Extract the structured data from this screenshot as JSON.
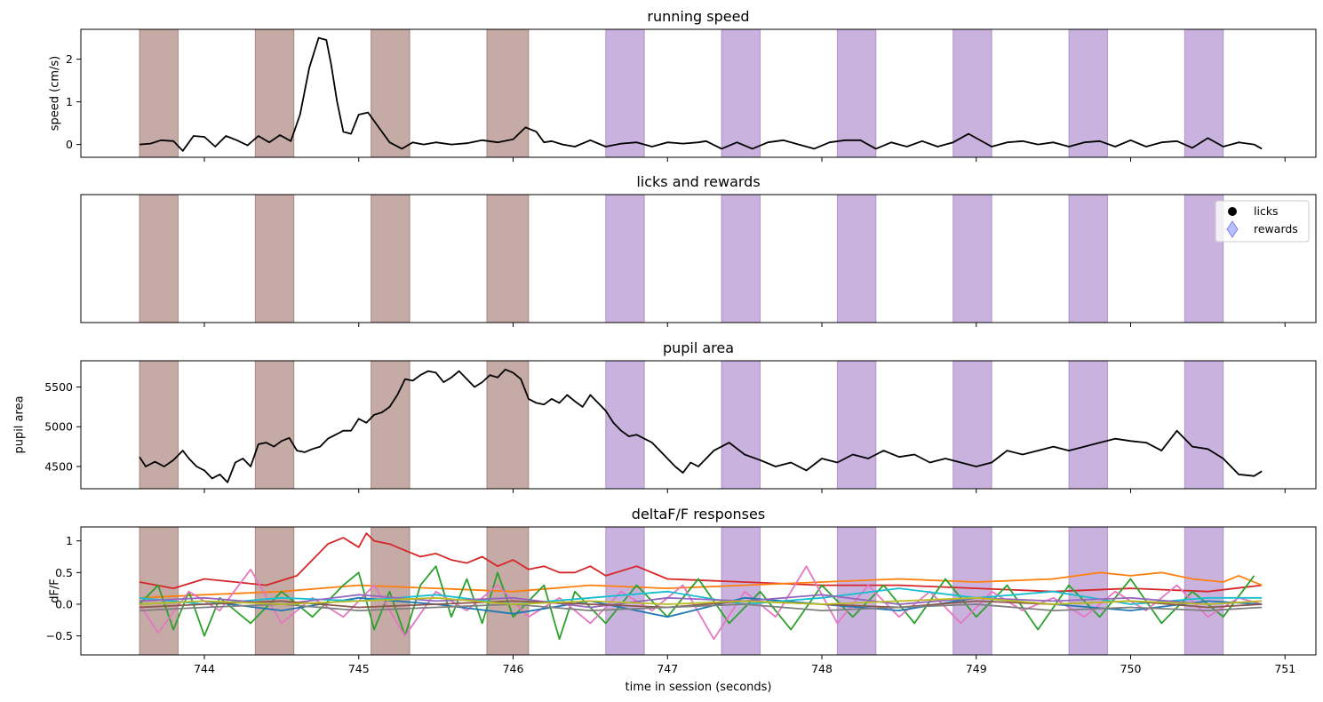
{
  "chart_data": [
    {
      "type": "line",
      "title": "running speed",
      "xlabel": "",
      "ylabel": "speed (cm/s)",
      "xlim": [
        743.2,
        751.2
      ],
      "ylim": [
        -0.3,
        2.7
      ],
      "yticks": [
        0,
        1,
        2
      ],
      "show_xticklabels": false,
      "series": [
        {
          "color": "#000000",
          "x": [
            743.58,
            743.65,
            743.72,
            743.8,
            743.86,
            743.93,
            744.0,
            744.07,
            744.14,
            744.21,
            744.28,
            744.35,
            744.42,
            744.49,
            744.56,
            744.62,
            744.68,
            744.74,
            744.79,
            744.82,
            744.86,
            744.9,
            744.95,
            745.0,
            745.06,
            745.13,
            745.2,
            745.28,
            745.35,
            745.42,
            745.5,
            745.6,
            745.7,
            745.8,
            745.9,
            746.0,
            746.08,
            746.15,
            746.2,
            746.25,
            746.32,
            746.4,
            746.5,
            746.6,
            746.7,
            746.8,
            746.9,
            747.0,
            747.1,
            747.2,
            747.25,
            747.35,
            747.45,
            747.55,
            747.65,
            747.75,
            747.85,
            747.95,
            748.05,
            748.15,
            748.25,
            748.35,
            748.45,
            748.55,
            748.65,
            748.75,
            748.85,
            748.95,
            749.0,
            749.1,
            749.2,
            749.3,
            749.4,
            749.5,
            749.6,
            749.7,
            749.8,
            749.9,
            750.0,
            750.1,
            750.2,
            750.3,
            750.4,
            750.5,
            750.6,
            750.7,
            750.8,
            750.85
          ],
          "y": [
            0.0,
            0.02,
            0.1,
            0.08,
            -0.15,
            0.2,
            0.18,
            -0.05,
            0.2,
            0.1,
            -0.02,
            0.2,
            0.05,
            0.22,
            0.08,
            0.7,
            1.8,
            2.5,
            2.45,
            1.9,
            1.0,
            0.3,
            0.25,
            0.7,
            0.75,
            0.4,
            0.05,
            -0.1,
            0.05,
            0.0,
            0.05,
            0.0,
            0.03,
            0.1,
            0.05,
            0.12,
            0.4,
            0.3,
            0.05,
            0.08,
            0.0,
            -0.05,
            0.1,
            -0.05,
            0.02,
            0.05,
            -0.05,
            0.05,
            0.02,
            0.05,
            0.08,
            -0.1,
            0.05,
            -0.1,
            0.05,
            0.1,
            0.0,
            -0.1,
            0.05,
            0.1,
            0.1,
            -0.1,
            0.05,
            -0.05,
            0.08,
            -0.05,
            0.05,
            0.25,
            0.15,
            -0.05,
            0.05,
            0.08,
            0.0,
            0.05,
            -0.05,
            0.05,
            0.08,
            -0.05,
            0.1,
            -0.05,
            0.05,
            0.08,
            -0.08,
            0.15,
            -0.05,
            0.05,
            0.0,
            -0.1
          ]
        }
      ]
    },
    {
      "type": "scatter",
      "title": "licks and rewards",
      "xlabel": "",
      "ylabel": "",
      "xlim": [
        743.2,
        751.2
      ],
      "ylim": [
        0,
        1
      ],
      "show_yticks": false,
      "show_xticklabels": false,
      "legend": {
        "placement": "upper right",
        "entries": [
          {
            "label": "licks",
            "marker": "circle",
            "color": "#000000"
          },
          {
            "label": "rewards",
            "marker": "diamond",
            "color": "#8c96ff"
          }
        ]
      },
      "series": []
    },
    {
      "type": "line",
      "title": "pupil area",
      "xlabel": "",
      "ylabel": "pupil area",
      "xlim": [
        743.2,
        751.2
      ],
      "ylim": [
        4220,
        5830
      ],
      "yticks": [
        4500,
        5000,
        5500
      ],
      "show_xticklabels": false,
      "series": [
        {
          "color": "#000000",
          "x": [
            743.58,
            743.62,
            743.68,
            743.74,
            743.8,
            743.86,
            743.9,
            743.95,
            744.0,
            744.05,
            744.1,
            744.15,
            744.2,
            744.25,
            744.3,
            744.35,
            744.4,
            744.45,
            744.5,
            744.55,
            744.6,
            744.65,
            744.7,
            744.75,
            744.8,
            744.85,
            744.9,
            744.95,
            745.0,
            745.05,
            745.1,
            745.15,
            745.2,
            745.25,
            745.3,
            745.35,
            745.4,
            745.45,
            745.5,
            745.55,
            745.6,
            745.65,
            745.7,
            745.75,
            745.8,
            745.85,
            745.9,
            745.95,
            746.0,
            746.05,
            746.1,
            746.15,
            746.2,
            746.25,
            746.3,
            746.35,
            746.4,
            746.45,
            746.5,
            746.55,
            746.6,
            746.65,
            746.7,
            746.75,
            746.8,
            746.85,
            746.9,
            746.95,
            747.0,
            747.05,
            747.1,
            747.15,
            747.2,
            747.3,
            747.4,
            747.5,
            747.6,
            747.7,
            747.8,
            747.9,
            748.0,
            748.1,
            748.2,
            748.3,
            748.4,
            748.5,
            748.6,
            748.7,
            748.8,
            748.9,
            749.0,
            749.1,
            749.2,
            749.3,
            749.4,
            749.5,
            749.6,
            749.7,
            749.8,
            749.9,
            750.0,
            750.1,
            750.2,
            750.3,
            750.4,
            750.5,
            750.6,
            750.7,
            750.8,
            750.85
          ],
          "y": [
            4620,
            4500,
            4560,
            4500,
            4580,
            4700,
            4600,
            4500,
            4450,
            4350,
            4400,
            4300,
            4550,
            4600,
            4500,
            4780,
            4800,
            4750,
            4820,
            4860,
            4700,
            4680,
            4720,
            4750,
            4850,
            4900,
            4950,
            4950,
            5100,
            5050,
            5150,
            5180,
            5250,
            5400,
            5600,
            5580,
            5650,
            5700,
            5680,
            5560,
            5620,
            5700,
            5600,
            5500,
            5560,
            5650,
            5620,
            5720,
            5680,
            5600,
            5350,
            5300,
            5280,
            5350,
            5300,
            5400,
            5320,
            5250,
            5400,
            5300,
            5200,
            5050,
            4950,
            4880,
            4900,
            4850,
            4800,
            4700,
            4600,
            4500,
            4420,
            4550,
            4500,
            4700,
            4800,
            4650,
            4580,
            4500,
            4550,
            4450,
            4600,
            4550,
            4650,
            4600,
            4700,
            4620,
            4650,
            4550,
            4600,
            4550,
            4500,
            4550,
            4700,
            4650,
            4700,
            4750,
            4700,
            4750,
            4800,
            4850,
            4820,
            4800,
            4700,
            4950,
            4750,
            4720,
            4600,
            4400,
            4380,
            4440
          ]
        }
      ]
    },
    {
      "type": "line",
      "title": "deltaF/F responses",
      "xlabel": "time in session (seconds)",
      "ylabel": "dF/F",
      "xlim": [
        743.2,
        751.2
      ],
      "ylim": [
        -0.8,
        1.22
      ],
      "yticks": [
        -0.5,
        0.0,
        0.5,
        1.0
      ],
      "xticks": [
        744,
        745,
        746,
        747,
        748,
        749,
        750,
        751
      ],
      "series": [
        {
          "color": "#d62728",
          "x": [
            743.58,
            743.8,
            744.0,
            744.2,
            744.4,
            744.6,
            744.7,
            744.8,
            744.9,
            745.0,
            745.05,
            745.1,
            745.2,
            745.3,
            745.4,
            745.5,
            745.6,
            745.7,
            745.8,
            745.9,
            746.0,
            746.1,
            746.2,
            746.3,
            746.4,
            746.5,
            746.6,
            746.8,
            747.0,
            747.5,
            748.0,
            748.5,
            749.0,
            749.5,
            750.0,
            750.5,
            750.85
          ],
          "y": [
            0.35,
            0.25,
            0.4,
            0.35,
            0.3,
            0.45,
            0.7,
            0.95,
            1.05,
            0.9,
            1.12,
            1.0,
            0.95,
            0.85,
            0.75,
            0.8,
            0.7,
            0.65,
            0.75,
            0.6,
            0.7,
            0.55,
            0.6,
            0.5,
            0.5,
            0.6,
            0.45,
            0.6,
            0.4,
            0.35,
            0.3,
            0.3,
            0.25,
            0.2,
            0.25,
            0.2,
            0.3
          ]
        },
        {
          "color": "#ff7f0e",
          "x": [
            743.58,
            744.0,
            744.5,
            745.0,
            745.5,
            746.0,
            746.5,
            747.0,
            747.5,
            748.0,
            748.5,
            749.0,
            749.5,
            749.8,
            750.0,
            750.2,
            750.4,
            750.6,
            750.7,
            750.85
          ],
          "y": [
            0.1,
            0.15,
            0.2,
            0.3,
            0.25,
            0.2,
            0.3,
            0.25,
            0.3,
            0.35,
            0.4,
            0.35,
            0.4,
            0.5,
            0.45,
            0.5,
            0.4,
            0.35,
            0.45,
            0.3
          ]
        },
        {
          "color": "#2ca02c",
          "x": [
            743.58,
            743.7,
            743.8,
            743.9,
            744.0,
            744.1,
            744.3,
            744.5,
            744.7,
            744.9,
            745.0,
            745.1,
            745.2,
            745.3,
            745.4,
            745.5,
            745.6,
            745.7,
            745.8,
            745.9,
            746.0,
            746.2,
            746.3,
            746.4,
            746.6,
            746.8,
            747.0,
            747.2,
            747.4,
            747.6,
            747.8,
            748.0,
            748.2,
            748.4,
            748.6,
            748.8,
            749.0,
            749.2,
            749.4,
            749.6,
            749.8,
            750.0,
            750.2,
            750.4,
            750.6,
            750.8
          ],
          "y": [
            0.0,
            0.3,
            -0.4,
            0.2,
            -0.5,
            0.1,
            -0.3,
            0.2,
            -0.2,
            0.3,
            0.5,
            -0.4,
            0.2,
            -0.5,
            0.3,
            0.6,
            -0.2,
            0.4,
            -0.3,
            0.5,
            -0.2,
            0.3,
            -0.55,
            0.2,
            -0.3,
            0.3,
            -0.2,
            0.4,
            -0.3,
            0.2,
            -0.4,
            0.3,
            -0.2,
            0.3,
            -0.3,
            0.4,
            -0.2,
            0.3,
            -0.4,
            0.3,
            -0.2,
            0.4,
            -0.3,
            0.2,
            -0.2,
            0.45
          ]
        },
        {
          "color": "#e377c2",
          "x": [
            743.58,
            743.7,
            743.9,
            744.1,
            744.3,
            744.5,
            744.7,
            744.9,
            745.1,
            745.3,
            745.5,
            745.7,
            745.9,
            746.1,
            746.3,
            746.5,
            746.7,
            746.9,
            747.1,
            747.3,
            747.5,
            747.7,
            747.9,
            748.1,
            748.3,
            748.5,
            748.7,
            748.9,
            749.1,
            749.3,
            749.5,
            749.7,
            749.9,
            750.1,
            750.3,
            750.5,
            750.7,
            750.85
          ],
          "y": [
            0.0,
            -0.45,
            0.2,
            -0.1,
            0.55,
            -0.3,
            0.1,
            -0.2,
            0.3,
            -0.5,
            0.2,
            -0.1,
            0.3,
            -0.2,
            0.1,
            -0.3,
            0.2,
            -0.1,
            0.3,
            -0.55,
            0.2,
            -0.2,
            0.6,
            -0.3,
            0.3,
            -0.2,
            0.2,
            -0.3,
            0.2,
            -0.1,
            0.1,
            -0.2,
            0.2,
            -0.1,
            0.3,
            -0.2,
            0.1,
            0.0
          ]
        },
        {
          "color": "#1f77b4",
          "x": [
            743.58,
            744.0,
            744.5,
            745.0,
            745.5,
            746.0,
            746.5,
            747.0,
            747.5,
            748.0,
            748.5,
            749.0,
            749.5,
            750.0,
            750.5,
            750.85
          ],
          "y": [
            0.0,
            0.05,
            -0.1,
            0.1,
            0.0,
            -0.15,
            0.05,
            -0.2,
            0.1,
            0.0,
            -0.1,
            0.1,
            0.0,
            -0.1,
            0.05,
            0.0
          ]
        },
        {
          "color": "#17becf",
          "x": [
            743.58,
            744.0,
            744.5,
            745.0,
            745.5,
            746.0,
            746.5,
            747.0,
            747.5,
            748.0,
            748.5,
            749.0,
            749.5,
            750.0,
            750.5,
            750.85
          ],
          "y": [
            0.1,
            0.0,
            0.1,
            0.05,
            0.15,
            0.0,
            0.1,
            0.2,
            0.0,
            0.1,
            0.25,
            0.1,
            0.2,
            0.0,
            0.1,
            0.1
          ]
        },
        {
          "color": "#9467bd",
          "x": [
            743.58,
            744.0,
            744.5,
            745.0,
            745.5,
            746.0,
            746.5,
            747.0,
            747.5,
            748.0,
            748.5,
            749.0,
            749.5,
            750.0,
            750.5,
            750.85
          ],
          "y": [
            0.05,
            0.1,
            0.0,
            0.15,
            0.05,
            0.1,
            -0.05,
            0.1,
            0.05,
            0.15,
            0.0,
            0.1,
            0.05,
            0.1,
            0.0,
            0.05
          ]
        },
        {
          "color": "#8c564b",
          "x": [
            743.58,
            744.0,
            744.5,
            745.0,
            745.5,
            746.0,
            746.5,
            747.0,
            747.5,
            748.0,
            748.5,
            749.0,
            749.5,
            750.0,
            750.5,
            750.85
          ],
          "y": [
            -0.05,
            0.0,
            0.05,
            -0.05,
            0.0,
            0.05,
            0.0,
            -0.05,
            0.05,
            0.0,
            -0.05,
            0.05,
            0.0,
            0.05,
            -0.05,
            0.0
          ]
        },
        {
          "color": "#7f7f7f",
          "x": [
            743.58,
            744.0,
            744.5,
            745.0,
            745.5,
            746.0,
            746.5,
            747.0,
            747.5,
            748.0,
            748.5,
            749.0,
            749.5,
            750.0,
            750.5,
            750.85
          ],
          "y": [
            -0.1,
            -0.05,
            0.0,
            -0.1,
            -0.05,
            0.0,
            -0.1,
            -0.05,
            0.0,
            -0.1,
            -0.05,
            0.0,
            -0.1,
            -0.05,
            -0.1,
            -0.05
          ]
        },
        {
          "color": "#bcbd22",
          "x": [
            743.58,
            744.0,
            744.5,
            745.0,
            745.5,
            746.0,
            746.5,
            747.0,
            747.5,
            748.0,
            748.5,
            749.0,
            749.5,
            750.0,
            750.5,
            750.85
          ],
          "y": [
            0.0,
            0.05,
            0.0,
            0.05,
            0.1,
            0.0,
            0.05,
            0.0,
            0.05,
            0.0,
            0.05,
            0.1,
            0.0,
            0.05,
            0.0,
            0.05
          ]
        }
      ]
    }
  ],
  "shaded_windows": {
    "brown_color": "#8c564b",
    "purple_color": "#9467bd",
    "brown": [
      [
        743.58,
        743.83
      ],
      [
        744.33,
        744.58
      ],
      [
        745.08,
        745.33
      ],
      [
        745.83,
        746.1
      ]
    ],
    "purple": [
      [
        746.6,
        746.85
      ],
      [
        747.35,
        747.6
      ],
      [
        748.1,
        748.35
      ],
      [
        748.85,
        749.1
      ],
      [
        749.6,
        749.85
      ],
      [
        750.35,
        750.6
      ]
    ]
  }
}
